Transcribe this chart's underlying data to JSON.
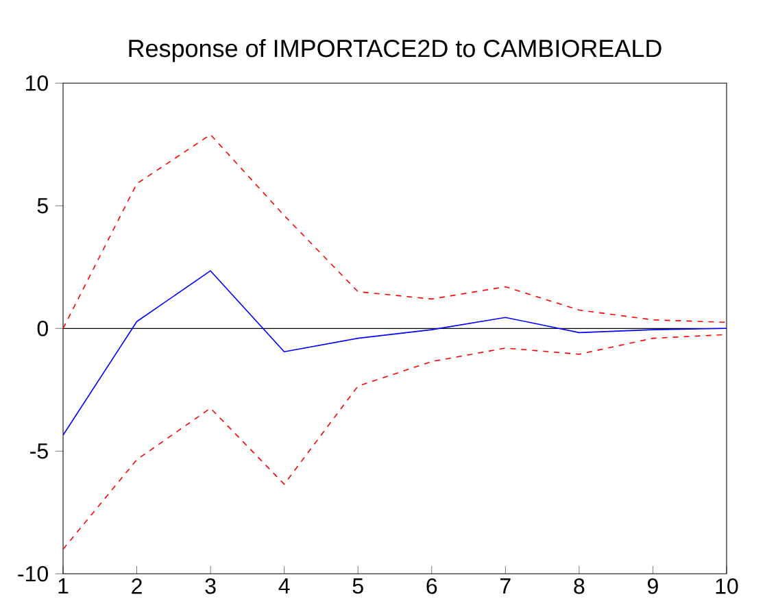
{
  "chart_data": {
    "type": "line",
    "title": "Response of IMPORTACE2D to CAMBIOREALD",
    "x": [
      1,
      2,
      3,
      4,
      5,
      6,
      7,
      8,
      9,
      10
    ],
    "series": [
      {
        "color": "#0000ff",
        "line_style": "solid",
        "values": [
          -4.35,
          0.28,
          2.35,
          -0.95,
          -0.4,
          -0.05,
          0.45,
          -0.17,
          -0.05,
          0.0
        ]
      },
      {
        "color": "#ff0000",
        "line_style": "dashed",
        "values": [
          0.0,
          5.9,
          7.9,
          4.6,
          1.5,
          1.2,
          1.7,
          0.75,
          0.35,
          0.25
        ]
      },
      {
        "color": "#ff0000",
        "line_style": "dashed",
        "values": [
          -9.0,
          -5.35,
          -3.25,
          -6.35,
          -2.35,
          -1.35,
          -0.8,
          -1.05,
          -0.4,
          -0.25
        ]
      }
    ],
    "xlim": [
      1,
      10
    ],
    "xticks": [
      1,
      2,
      3,
      4,
      5,
      6,
      7,
      8,
      9,
      10
    ],
    "ylim": [
      -10,
      10
    ],
    "yticks": [
      -10,
      -5,
      0,
      5,
      10
    ],
    "ref_lines": [
      {
        "axis": "y",
        "value": 0,
        "color": "#000000"
      }
    ],
    "grid": false,
    "marker": "none"
  }
}
